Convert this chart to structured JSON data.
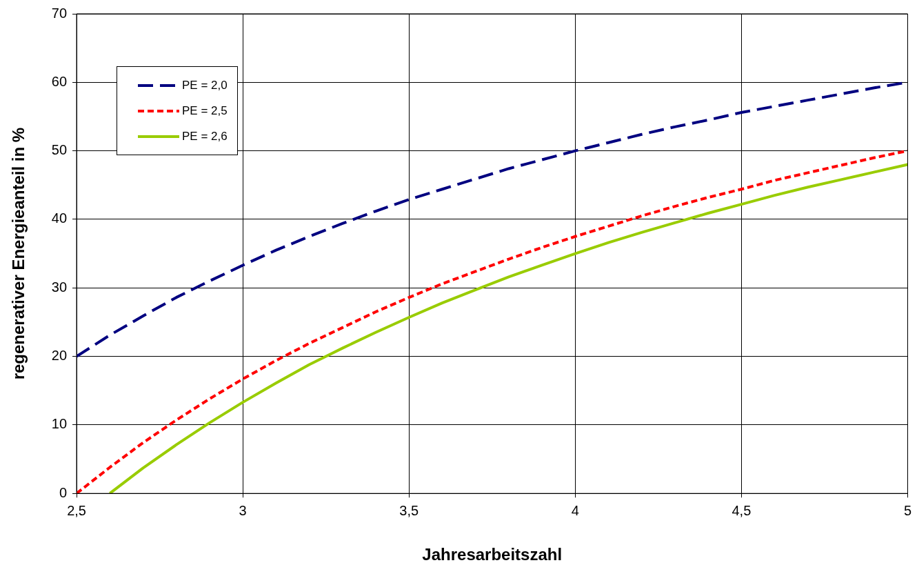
{
  "chart_data": {
    "type": "line",
    "xlabel": "Jahresarbeitszahl",
    "ylabel": "regenerativer Energieanteil in %",
    "xlim": [
      2.5,
      5
    ],
    "xticks": [
      {
        "value": 2.5,
        "label": "2,5"
      },
      3,
      {
        "value": 3.5,
        "label": "3,5"
      },
      4,
      {
        "value": 4.5,
        "label": "4,5"
      },
      5
    ],
    "ylim": [
      0,
      70
    ],
    "yticks": [
      0,
      10,
      20,
      30,
      40,
      50,
      60,
      70
    ],
    "grid": true,
    "legend": "top left",
    "marker": "none",
    "series": [
      {
        "name": "PE = 2,0",
        "color": "#000080",
        "line_style": "dashed",
        "x": [
          2.5,
          2.6,
          2.7,
          2.8,
          2.9,
          3.0,
          3.1,
          3.2,
          3.3,
          3.4,
          3.5,
          3.6,
          3.7,
          3.8,
          3.9,
          4.0,
          4.1,
          4.2,
          4.3,
          4.4,
          4.5,
          4.6,
          4.7,
          4.8,
          4.9,
          5.0
        ],
        "values": [
          20,
          23.1,
          25.9,
          28.6,
          31.0,
          33.3,
          35.5,
          37.5,
          39.4,
          41.2,
          42.9,
          44.4,
          45.9,
          47.4,
          48.7,
          50,
          51.2,
          52.4,
          53.5,
          54.5,
          55.6,
          56.5,
          57.4,
          58.3,
          59.2,
          60
        ]
      },
      {
        "name": "PE = 2,5",
        "color": "#ff0000",
        "line_style": "dotted",
        "x": [
          2.5,
          2.6,
          2.7,
          2.8,
          2.9,
          3.0,
          3.1,
          3.2,
          3.3,
          3.4,
          3.5,
          3.6,
          3.7,
          3.8,
          3.9,
          4.0,
          4.1,
          4.2,
          4.3,
          4.4,
          4.5,
          4.6,
          4.7,
          4.8,
          4.9,
          5.0
        ],
        "values": [
          0,
          3.8,
          7.4,
          10.7,
          13.8,
          16.7,
          19.4,
          21.9,
          24.2,
          26.5,
          28.6,
          30.6,
          32.4,
          34.2,
          35.9,
          37.5,
          39.0,
          40.5,
          41.9,
          43.2,
          44.4,
          45.7,
          46.8,
          47.9,
          49.0,
          50
        ]
      },
      {
        "name": "PE = 2,6",
        "color": "#99cc00",
        "line_style": "solid",
        "x": [
          2.6,
          2.7,
          2.8,
          2.9,
          3.0,
          3.1,
          3.2,
          3.3,
          3.4,
          3.5,
          3.6,
          3.7,
          3.8,
          3.9,
          4.0,
          4.1,
          4.2,
          4.3,
          4.4,
          4.5,
          4.6,
          4.7,
          4.8,
          4.9,
          5.0
        ],
        "values": [
          0,
          3.7,
          7.1,
          10.3,
          13.3,
          16.1,
          18.8,
          21.2,
          23.5,
          25.7,
          27.8,
          29.7,
          31.6,
          33.3,
          35,
          36.6,
          38.1,
          39.5,
          40.9,
          42.2,
          43.5,
          44.7,
          45.8,
          46.9,
          48
        ]
      }
    ]
  }
}
